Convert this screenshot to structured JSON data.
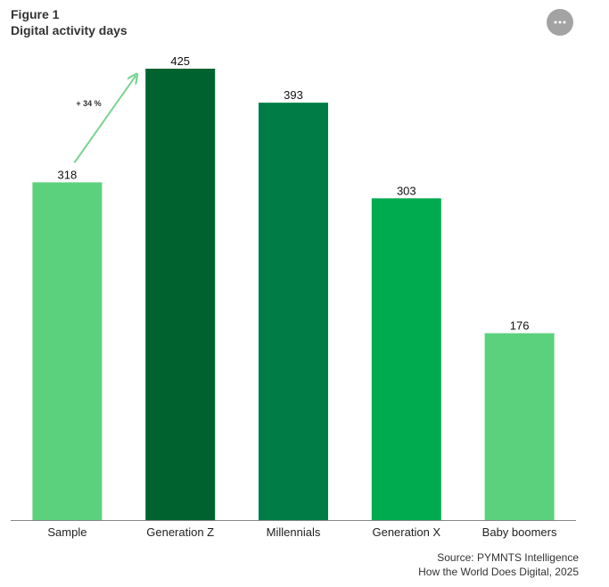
{
  "header": {
    "figure_label": "Figure 1",
    "title": "Digital activity days"
  },
  "menu": {
    "icon": "more-horizontal-icon",
    "color": "#a3a3a3"
  },
  "chart_data": {
    "type": "bar",
    "title": "Digital activity days",
    "categories": [
      "Sample",
      "Generation Z",
      "Millennials",
      "Generation X",
      "Baby boomers"
    ],
    "values": [
      318,
      425,
      393,
      303,
      176
    ],
    "colors": [
      "#5cd17d",
      "#00632f",
      "#007d47",
      "#00aa4f",
      "#5cd17d"
    ],
    "xlabel": "",
    "ylabel": "",
    "ylim": [
      0,
      425
    ],
    "grid": false,
    "legend": "none",
    "data_labels": true,
    "annotation": {
      "text": "+ 34 %",
      "from_category": "Sample",
      "to_category": "Generation Z",
      "color": "#7ad393"
    }
  },
  "source": {
    "line1": "Source: PYMNTS Intelligence",
    "line2": "How the World Does Digital, 2025"
  }
}
